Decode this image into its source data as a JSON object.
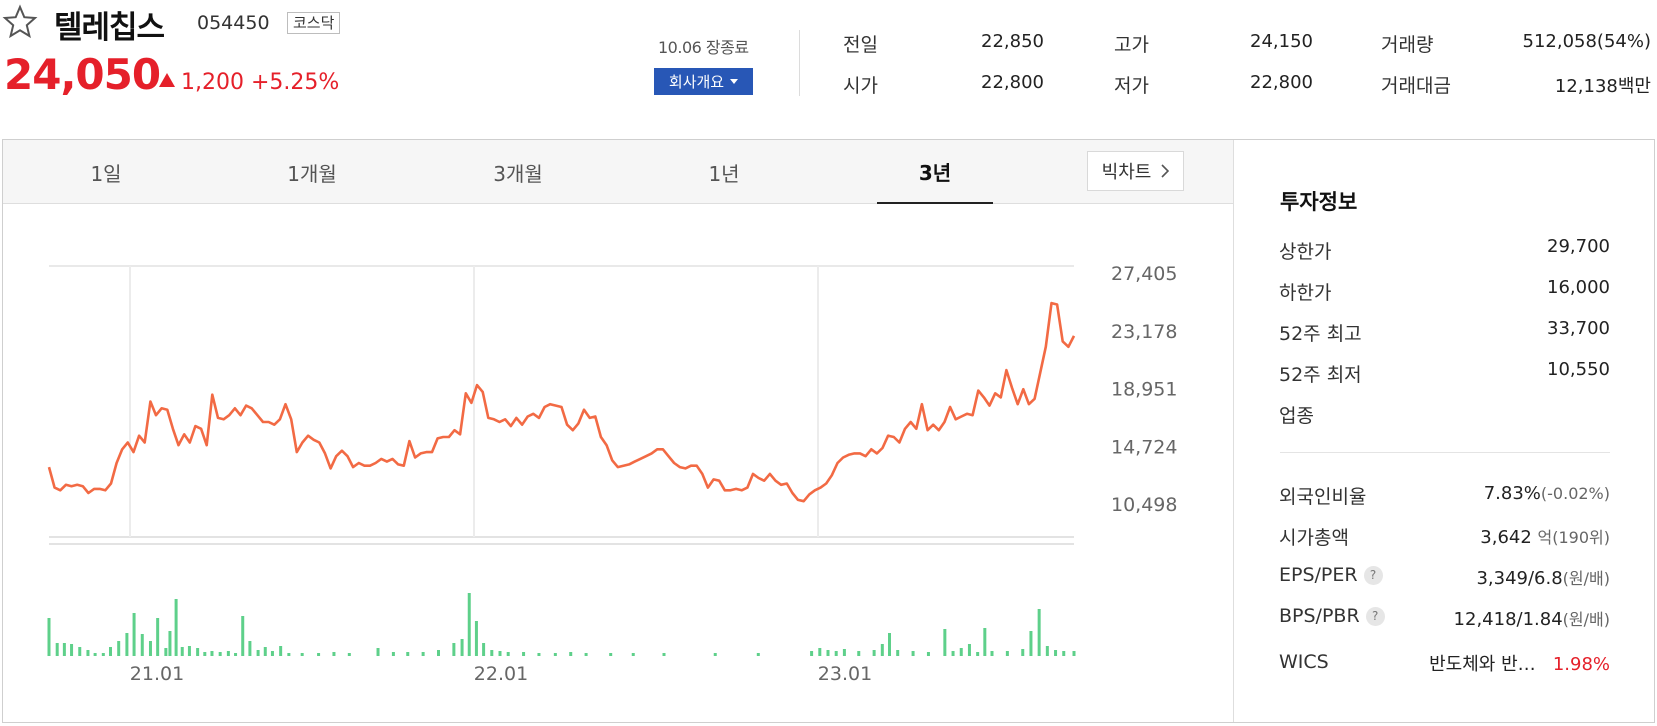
{
  "stock": {
    "name": "텔레칩스",
    "code": "054450",
    "market": "코스닥",
    "price": "24,050",
    "change": "1,200",
    "change_pct": "+5.25%"
  },
  "session": {
    "close_time": "10.06 장종료",
    "company_button": "회사개요"
  },
  "quote": {
    "prev_label": "전일",
    "prev_value": "22,850",
    "high_label": "고가",
    "high_value": "24,150",
    "volume_label": "거래량",
    "volume_value": "512,058(54%)",
    "open_label": "시가",
    "open_value": "22,800",
    "low_label": "저가",
    "low_value": "22,800",
    "amount_label": "거래대금",
    "amount_value": "12,138",
    "amount_unit": "백만"
  },
  "tabs": [
    {
      "label": "1일"
    },
    {
      "label": "1개월"
    },
    {
      "label": "3개월"
    },
    {
      "label": "1년"
    },
    {
      "label": "3년"
    }
  ],
  "active_tab": "3년",
  "bigchart_label": "빅차트",
  "invest": {
    "title": "투자정보",
    "upper_label": "상한가",
    "upper_value": "29,700",
    "lower_label": "하한가",
    "lower_value": "16,000",
    "high52_label": "52주 최고",
    "high52_value": "33,700",
    "low52_label": "52주 최저",
    "low52_value": "10,550",
    "industry_label": "업종",
    "foreign_label": "외국인비율",
    "foreign_value": "7.83%",
    "foreign_change": "(-0.02%)",
    "mktcap_label": "시가총액",
    "mktcap_value": "3,642",
    "mktcap_unit": "억(190위)",
    "eps_label": "EPS/PER",
    "eps_value": "3,349/6.8",
    "eps_unit": "(원/배)",
    "bps_label": "BPS/PBR",
    "bps_value": "12,418/1.84",
    "bps_unit": "(원/배)",
    "wics_label": "WICS",
    "wics_value": "반도체와 반…",
    "wics_pct": "1.98%"
  },
  "colors": {
    "up": "#e5202a",
    "down": "#2b5bd8",
    "line": "#f26a44",
    "volume": "#5ed08a",
    "button": "#2857b6"
  },
  "chart_data": {
    "type": "line",
    "x_tick_labels": [
      "21.01",
      "22.01",
      "23.01"
    ],
    "y_tick_labels": [
      "27,405",
      "23,178",
      "18,951",
      "14,724",
      "10,498"
    ],
    "ylim": [
      10498,
      27405
    ],
    "grid": true,
    "series": [
      {
        "values": [
          13200,
          11700,
          11500,
          11900,
          11800,
          11900,
          11800,
          11300,
          11600,
          11600,
          11500,
          12000,
          13500,
          14500,
          15000,
          14300,
          15500,
          15000,
          18000,
          17000,
          17500,
          17400,
          16000,
          14800,
          15600,
          15000,
          16200,
          16000,
          14800,
          18500,
          16800,
          16700,
          17000,
          17500,
          17000,
          17700,
          17500,
          17000,
          16500,
          16500,
          16300,
          16700,
          17800,
          16700,
          14300,
          15000,
          15500,
          15200,
          15000,
          14200,
          13100,
          14000,
          14400,
          14000,
          13200,
          13500,
          13300,
          13300,
          13500,
          13800,
          13600,
          13800,
          13400,
          13300,
          15100,
          13900,
          14200,
          14300,
          14300,
          15300,
          15400,
          15400,
          15900,
          15600,
          18600,
          17900,
          19200,
          18700,
          16800,
          16700,
          16500,
          16700,
          16200,
          16800,
          16300,
          16900,
          17100,
          16800,
          17600,
          17800,
          17700,
          17600,
          16300,
          15900,
          16400,
          17400,
          16800,
          16900,
          15400,
          14800,
          13700,
          13200,
          13300,
          13400,
          13600,
          13800,
          14000,
          14200,
          14500,
          14500,
          14000,
          13500,
          13200,
          13100,
          13300,
          13300,
          12700,
          11700,
          12300,
          12200,
          11500,
          11500,
          11600,
          11500,
          11700,
          12700,
          12400,
          12200,
          12700,
          12200,
          11900,
          12000,
          11300,
          10800,
          10700,
          11200,
          11500,
          11700,
          12000,
          12600,
          13500,
          13900,
          14100,
          14200,
          14200,
          14000,
          14500,
          14200,
          14600,
          15500,
          15400,
          15000,
          16000,
          16500,
          16000,
          17800,
          15900,
          16300,
          15900,
          16500,
          17600,
          16700,
          16900,
          17100,
          17000,
          18800,
          18300,
          17700,
          18600,
          18300,
          20300,
          19000,
          17800,
          18900,
          17800,
          18200,
          20100,
          22000,
          25200,
          25100,
          22400,
          22000,
          22800
        ]
      }
    ],
    "volume": [
      {
        "pos": 0.0,
        "v": 38
      },
      {
        "pos": 0.008,
        "v": 13
      },
      {
        "pos": 0.015,
        "v": 13
      },
      {
        "pos": 0.022,
        "v": 12
      },
      {
        "pos": 0.03,
        "v": 9
      },
      {
        "pos": 0.038,
        "v": 6
      },
      {
        "pos": 0.045,
        "v": 3
      },
      {
        "pos": 0.053,
        "v": 3
      },
      {
        "pos": 0.06,
        "v": 9
      },
      {
        "pos": 0.068,
        "v": 15
      },
      {
        "pos": 0.076,
        "v": 23
      },
      {
        "pos": 0.083,
        "v": 43
      },
      {
        "pos": 0.091,
        "v": 22
      },
      {
        "pos": 0.099,
        "v": 15
      },
      {
        "pos": 0.106,
        "v": 38
      },
      {
        "pos": 0.114,
        "v": 8
      },
      {
        "pos": 0.118,
        "v": 25
      },
      {
        "pos": 0.124,
        "v": 57
      },
      {
        "pos": 0.13,
        "v": 9
      },
      {
        "pos": 0.137,
        "v": 10
      },
      {
        "pos": 0.145,
        "v": 8
      },
      {
        "pos": 0.152,
        "v": 4
      },
      {
        "pos": 0.159,
        "v": 5
      },
      {
        "pos": 0.167,
        "v": 4
      },
      {
        "pos": 0.175,
        "v": 5
      },
      {
        "pos": 0.182,
        "v": 3
      },
      {
        "pos": 0.189,
        "v": 40
      },
      {
        "pos": 0.196,
        "v": 15
      },
      {
        "pos": 0.204,
        "v": 6
      },
      {
        "pos": 0.211,
        "v": 9
      },
      {
        "pos": 0.218,
        "v": 5
      },
      {
        "pos": 0.226,
        "v": 10
      },
      {
        "pos": 0.234,
        "v": 3
      },
      {
        "pos": 0.247,
        "v": 3
      },
      {
        "pos": 0.263,
        "v": 3
      },
      {
        "pos": 0.278,
        "v": 4
      },
      {
        "pos": 0.293,
        "v": 3
      },
      {
        "pos": 0.321,
        "v": 8
      },
      {
        "pos": 0.336,
        "v": 4
      },
      {
        "pos": 0.35,
        "v": 4
      },
      {
        "pos": 0.365,
        "v": 4
      },
      {
        "pos": 0.38,
        "v": 6
      },
      {
        "pos": 0.395,
        "v": 13
      },
      {
        "pos": 0.403,
        "v": 17
      },
      {
        "pos": 0.41,
        "v": 63
      },
      {
        "pos": 0.417,
        "v": 35
      },
      {
        "pos": 0.424,
        "v": 13
      },
      {
        "pos": 0.432,
        "v": 6
      },
      {
        "pos": 0.44,
        "v": 5
      },
      {
        "pos": 0.448,
        "v": 4
      },
      {
        "pos": 0.463,
        "v": 4
      },
      {
        "pos": 0.478,
        "v": 3
      },
      {
        "pos": 0.494,
        "v": 3
      },
      {
        "pos": 0.509,
        "v": 4
      },
      {
        "pos": 0.524,
        "v": 3
      },
      {
        "pos": 0.548,
        "v": 3
      },
      {
        "pos": 0.57,
        "v": 3
      },
      {
        "pos": 0.6,
        "v": 3
      },
      {
        "pos": 0.65,
        "v": 3
      },
      {
        "pos": 0.692,
        "v": 3
      },
      {
        "pos": 0.744,
        "v": 5
      },
      {
        "pos": 0.752,
        "v": 8
      },
      {
        "pos": 0.76,
        "v": 6
      },
      {
        "pos": 0.768,
        "v": 5
      },
      {
        "pos": 0.776,
        "v": 7
      },
      {
        "pos": 0.79,
        "v": 5
      },
      {
        "pos": 0.805,
        "v": 6
      },
      {
        "pos": 0.813,
        "v": 12
      },
      {
        "pos": 0.82,
        "v": 23
      },
      {
        "pos": 0.828,
        "v": 6
      },
      {
        "pos": 0.843,
        "v": 5
      },
      {
        "pos": 0.858,
        "v": 4
      },
      {
        "pos": 0.874,
        "v": 27
      },
      {
        "pos": 0.882,
        "v": 5
      },
      {
        "pos": 0.89,
        "v": 8
      },
      {
        "pos": 0.898,
        "v": 12
      },
      {
        "pos": 0.906,
        "v": 4
      },
      {
        "pos": 0.913,
        "v": 28
      },
      {
        "pos": 0.92,
        "v": 5
      },
      {
        "pos": 0.935,
        "v": 5
      },
      {
        "pos": 0.95,
        "v": 7
      },
      {
        "pos": 0.958,
        "v": 25
      },
      {
        "pos": 0.966,
        "v": 47
      },
      {
        "pos": 0.974,
        "v": 10
      },
      {
        "pos": 0.982,
        "v": 6
      },
      {
        "pos": 0.99,
        "v": 5
      },
      {
        "pos": 1.0,
        "v": 5
      }
    ]
  }
}
